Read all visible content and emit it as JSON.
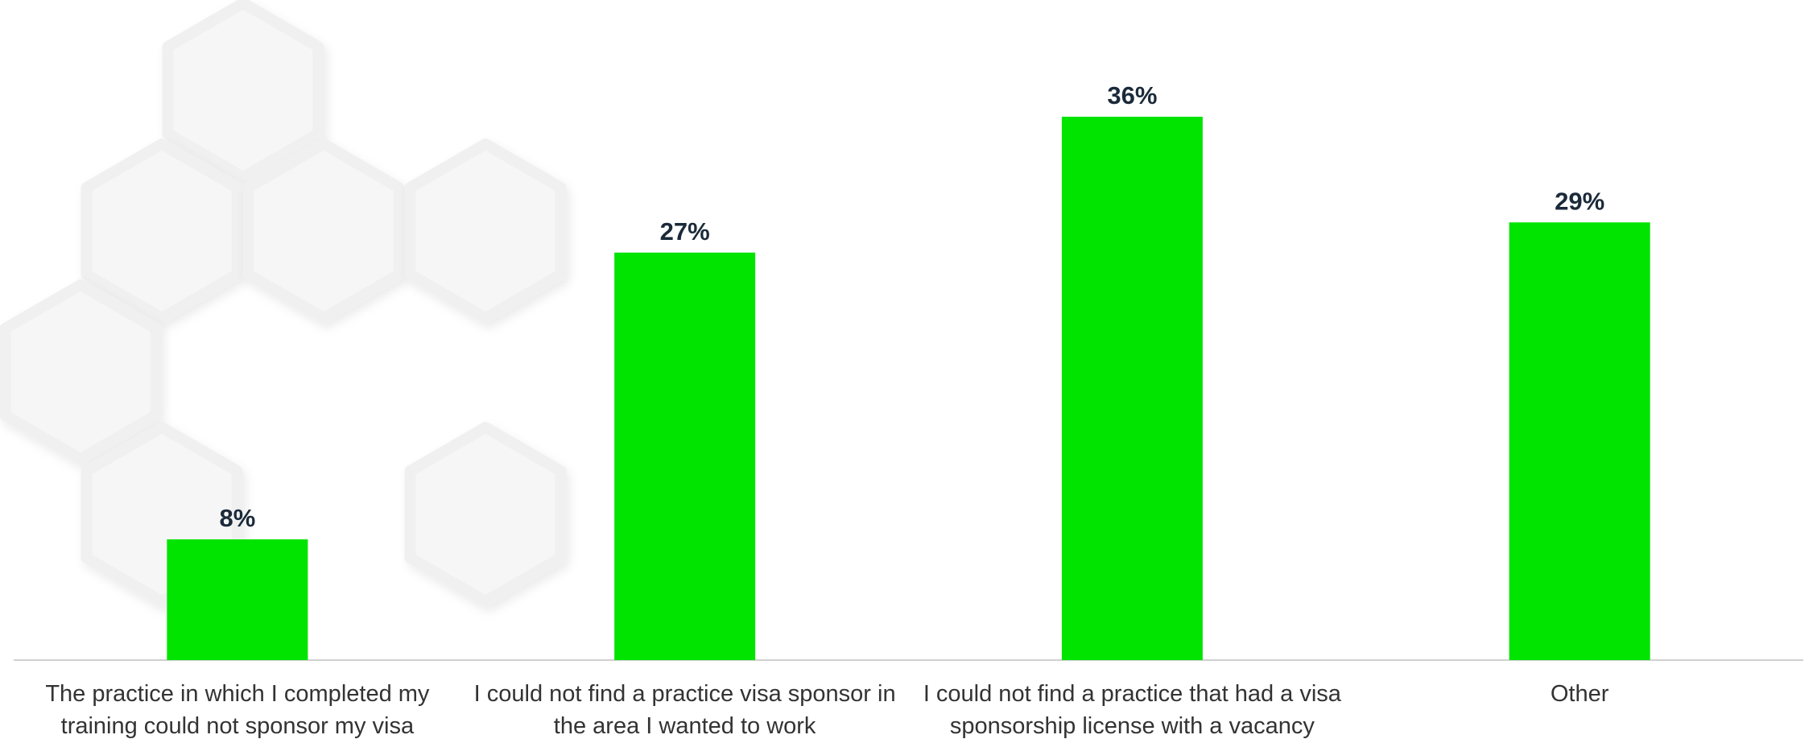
{
  "chart_data": {
    "type": "bar",
    "categories": [
      "The practice in which I completed my training could not sponsor my visa",
      "I could not find a practice visa sponsor in the area I wanted to work",
      "I could not find a practice that had a visa sponsorship license with a vacancy",
      "Other"
    ],
    "values": [
      8,
      27,
      36,
      29
    ],
    "value_labels": [
      "8%",
      "27%",
      "36%",
      "29%"
    ],
    "color": "#00e400"
  }
}
